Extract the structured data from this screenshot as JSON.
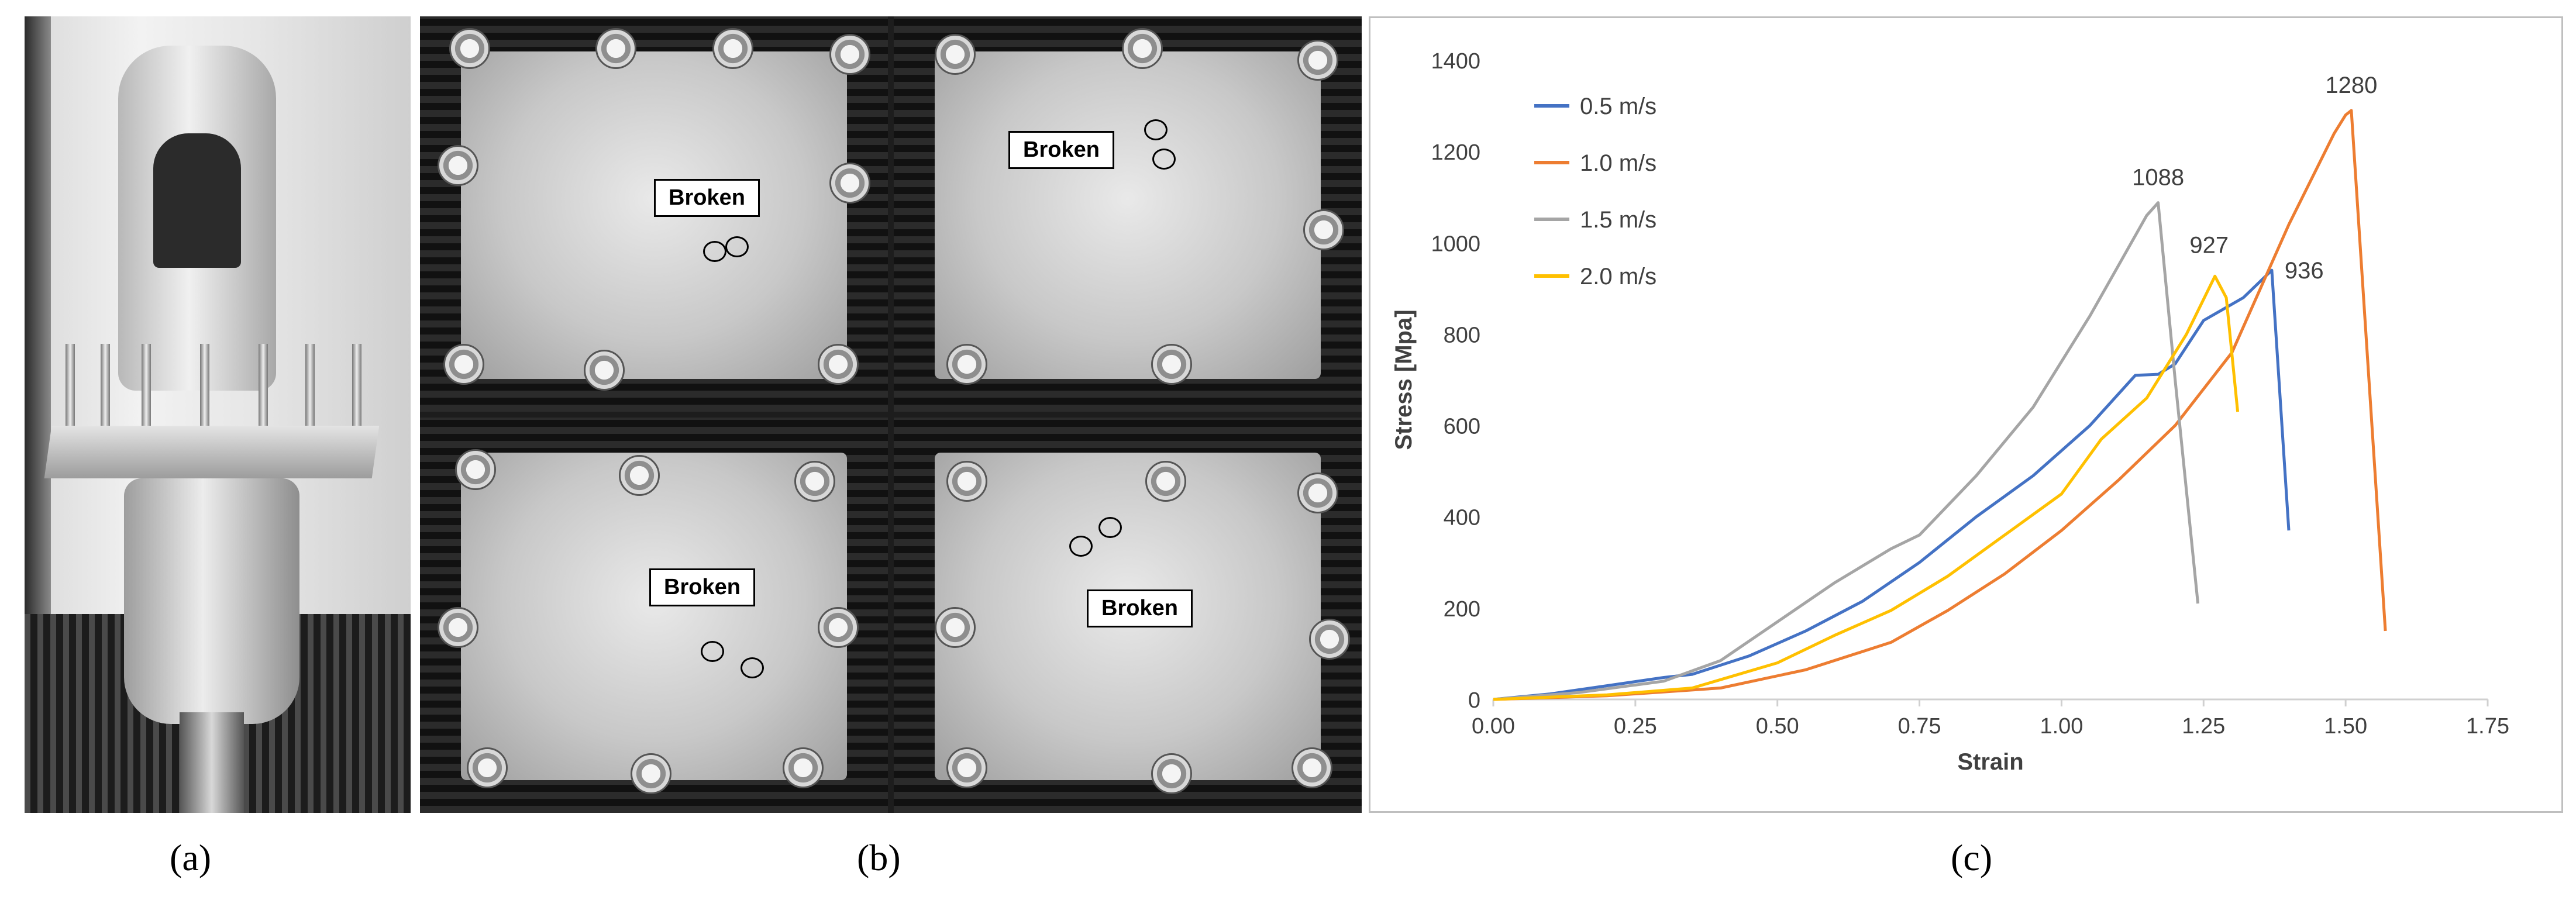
{
  "panels": {
    "a": {
      "label": "(a)"
    },
    "b": {
      "label": "(b)",
      "callouts": [
        "Broken",
        "Broken",
        "Broken",
        "Broken"
      ]
    },
    "c": {
      "label": "(c)"
    }
  },
  "chart_data": {
    "type": "line",
    "title": "",
    "xlabel": "Strain",
    "ylabel": "Stress [Mpa]",
    "xlim": [
      0,
      1.75
    ],
    "ylim": [
      0,
      1400
    ],
    "xticks": [
      "0.00",
      "0.25",
      "0.50",
      "0.75",
      "1.00",
      "1.25",
      "1.50",
      "1.75"
    ],
    "yticks": [
      "0",
      "200",
      "400",
      "600",
      "800",
      "1000",
      "1200",
      "1400"
    ],
    "grid": false,
    "legend_position": "top-left",
    "series": [
      {
        "name": "0.5 m/s",
        "color": "#4472C4",
        "peak_label": "936",
        "x": [
          0,
          0.1,
          0.2,
          0.3,
          0.35,
          0.45,
          0.55,
          0.65,
          0.75,
          0.85,
          0.95,
          1.05,
          1.13,
          1.17,
          1.2,
          1.25,
          1.32,
          1.37,
          1.4
        ],
        "y": [
          0,
          12,
          30,
          48,
          55,
          95,
          150,
          215,
          300,
          400,
          490,
          600,
          710,
          712,
          735,
          830,
          880,
          940,
          370
        ]
      },
      {
        "name": "1.0 m/s",
        "color": "#ED7D31",
        "peak_label": "1280",
        "x": [
          0,
          0.2,
          0.4,
          0.55,
          0.7,
          0.8,
          0.9,
          1.0,
          1.1,
          1.2,
          1.3,
          1.4,
          1.48,
          1.5,
          1.51,
          1.57
        ],
        "y": [
          0,
          8,
          25,
          65,
          125,
          195,
          275,
          370,
          480,
          600,
          760,
          1040,
          1240,
          1280,
          1290,
          150
        ]
      },
      {
        "name": "1.5 m/s",
        "color": "#A5A5A5",
        "peak_label": "1088",
        "x": [
          0,
          0.15,
          0.3,
          0.4,
          0.5,
          0.6,
          0.7,
          0.75,
          0.85,
          0.95,
          1.05,
          1.1,
          1.15,
          1.17,
          1.2,
          1.24
        ],
        "y": [
          0,
          15,
          40,
          85,
          170,
          255,
          330,
          360,
          490,
          640,
          840,
          950,
          1060,
          1088,
          700,
          210
        ]
      },
      {
        "name": "2.0 m/s",
        "color": "#FFC000",
        "peak_label": "927",
        "x": [
          0,
          0.2,
          0.35,
          0.5,
          0.6,
          0.7,
          0.8,
          0.9,
          1.0,
          1.07,
          1.15,
          1.22,
          1.27,
          1.29,
          1.31
        ],
        "y": [
          0,
          10,
          25,
          80,
          140,
          195,
          270,
          360,
          450,
          570,
          660,
          800,
          927,
          880,
          630
        ]
      }
    ]
  }
}
